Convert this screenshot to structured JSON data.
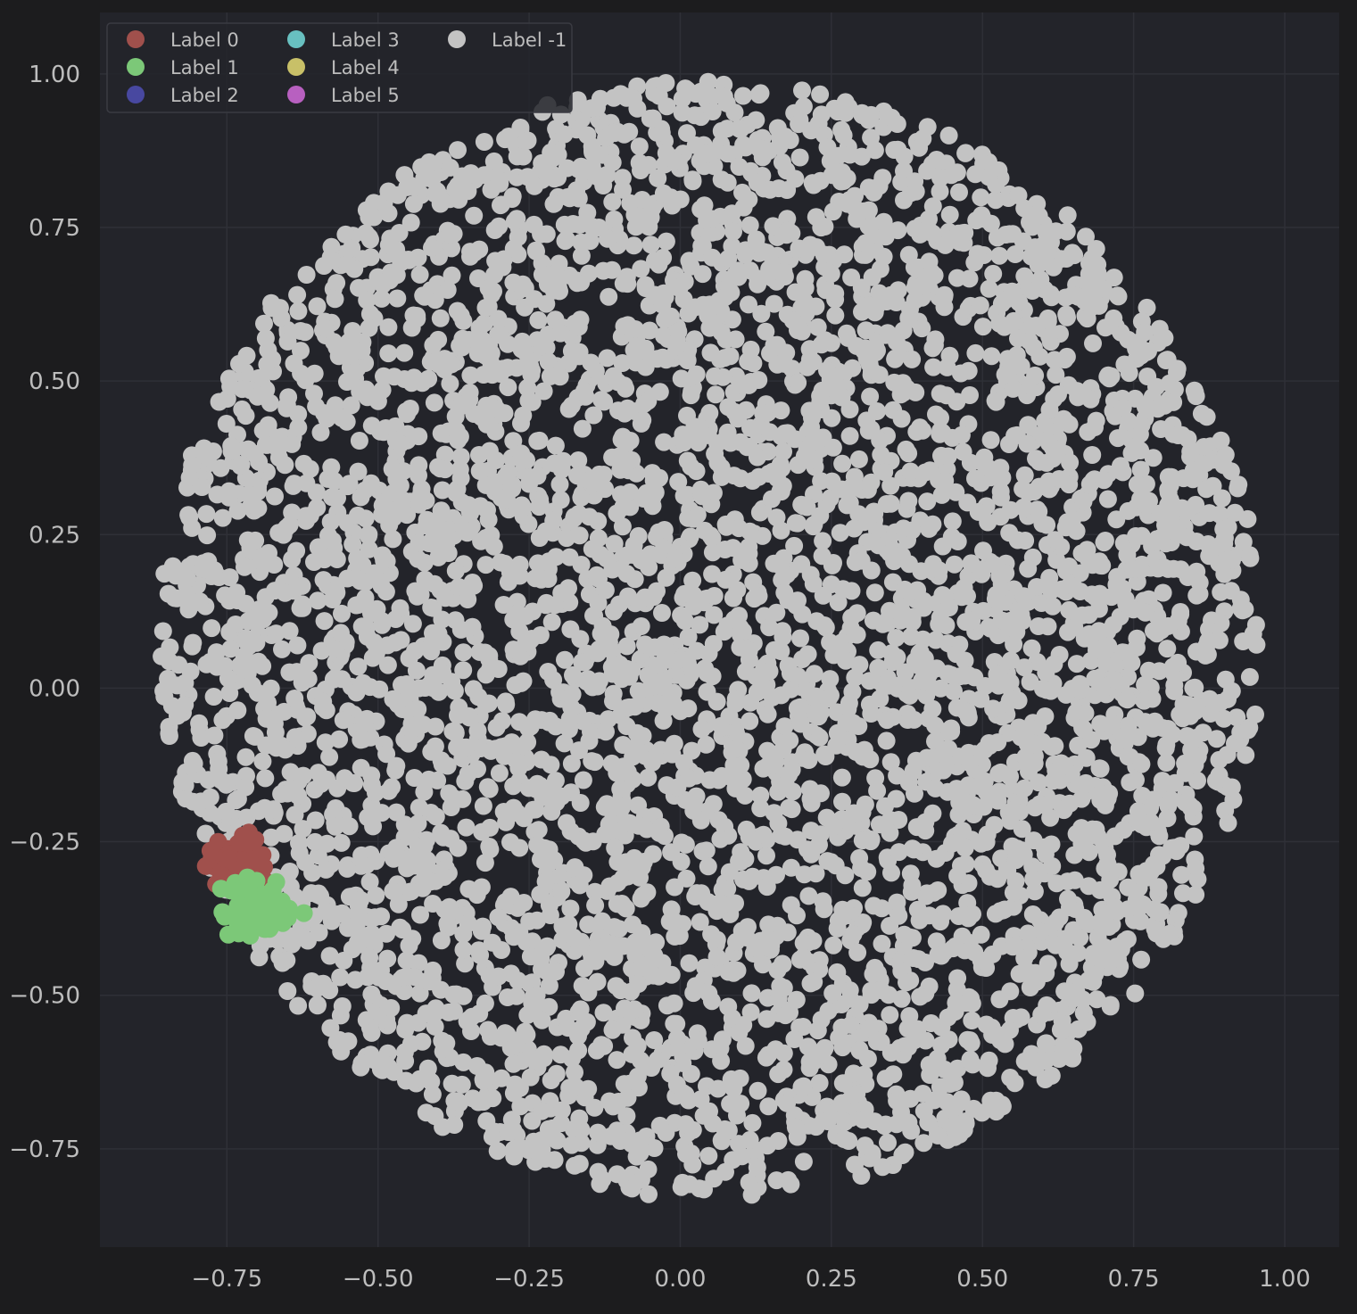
{
  "chart_data": {
    "type": "scatter",
    "title": "",
    "xlabel": "",
    "ylabel": "",
    "xlim": [
      -0.96,
      1.09
    ],
    "ylim": [
      -0.91,
      1.1
    ],
    "x_ticks": [
      -0.75,
      -0.5,
      -0.25,
      0.0,
      0.25,
      0.5,
      0.75,
      1.0
    ],
    "x_tick_labels": [
      "−0.75",
      "−0.50",
      "−0.25",
      "0.00",
      "0.25",
      "0.50",
      "0.75",
      "1.00"
    ],
    "y_ticks": [
      1.0,
      0.75,
      0.5,
      0.25,
      0.0,
      -0.25,
      -0.5,
      -0.75
    ],
    "y_tick_labels": [
      "1.00",
      "0.75",
      "0.50",
      "0.25",
      "0.00",
      "−0.25",
      "−0.50",
      "−0.75"
    ],
    "grid": true,
    "legend_position": "top-left",
    "legend_columns": 3,
    "background": "#23242a",
    "figure_background": "#1c1c1e",
    "series": [
      {
        "name": "Label 0",
        "color": "#a0504c",
        "center": [
          -0.73,
          -0.28
        ],
        "spread": 0.025,
        "count": 60
      },
      {
        "name": "Label 1",
        "color": "#7cc878",
        "center": [
          -0.7,
          -0.36
        ],
        "spread": 0.03,
        "count": 70
      },
      {
        "name": "Label 2",
        "color": "#4848a0",
        "count": 0
      },
      {
        "name": "Label 3",
        "color": "#68c0c0",
        "count": 0
      },
      {
        "name": "Label 4",
        "color": "#c8c068",
        "count": 0
      },
      {
        "name": "Label 5",
        "color": "#b860c0",
        "count": 0
      },
      {
        "name": "Label -1",
        "color": "#c3c3c3",
        "center": [
          0.05,
          0.08
        ],
        "radius": 0.91,
        "count": 4800
      }
    ]
  }
}
